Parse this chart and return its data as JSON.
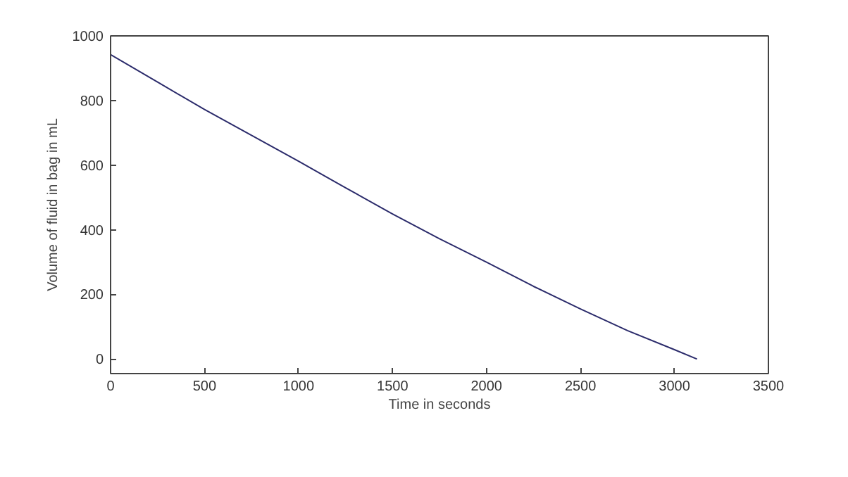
{
  "chart_data": {
    "type": "line",
    "xlabel": "Time in seconds",
    "ylabel": "Volume of fluid in bag in mL",
    "x": [
      0,
      250,
      500,
      750,
      1000,
      1250,
      1500,
      1750,
      2000,
      2250,
      2500,
      2750,
      3000,
      3120
    ],
    "series": [
      {
        "color": "#2b2b6b",
        "values": [
          942,
          857,
          772,
          692,
          612,
          530,
          449,
          372,
          300,
          225,
          155,
          88,
          29,
          0
        ]
      }
    ],
    "xlim": [
      0,
      3500
    ],
    "ylim": [
      -45,
      1000
    ],
    "xticks": [
      0,
      500,
      1000,
      1500,
      2000,
      2500,
      3000,
      3500
    ],
    "yticks": [
      0,
      200,
      400,
      600,
      800,
      1000
    ],
    "grid": false,
    "marker": "none",
    "line_style": "solid"
  }
}
